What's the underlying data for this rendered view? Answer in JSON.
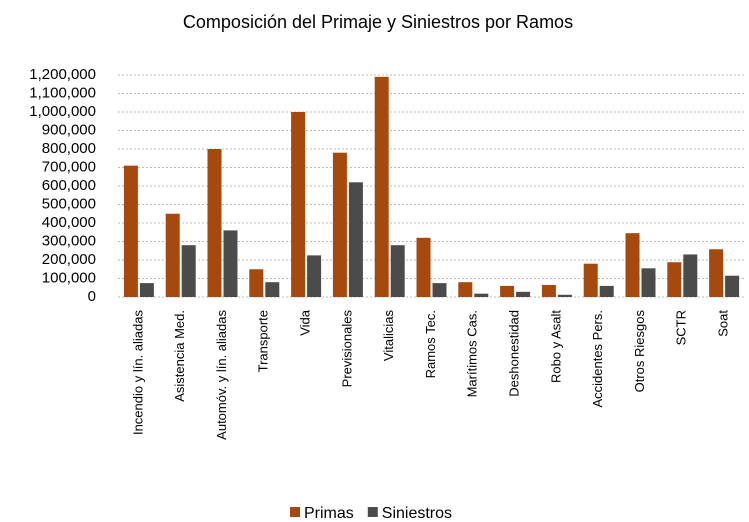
{
  "chart_data": {
    "type": "bar",
    "title": "Composición del Primaje y Siniestros por Ramos",
    "categories": [
      "Incendio y lín. aliadas",
      "Asistencia Med.",
      "Automóv. y lín. aliadas",
      "Transporte",
      "Vida",
      "Previsionales",
      "Vitalicias",
      "Ramos Tec.",
      "Marítimos Cas.",
      "Deshonestidad",
      "Robo y Asalt",
      "Accidentes Pers.",
      "Otros Riesgos",
      "SCTR",
      "Soat"
    ],
    "series": [
      {
        "name": "Primas",
        "color": "#a5490f",
        "values": [
          710000,
          450000,
          800000,
          150000,
          1000000,
          780000,
          1190000,
          320000,
          80000,
          60000,
          65000,
          180000,
          345000,
          188000,
          258000
        ]
      },
      {
        "name": "Siniestros",
        "color": "#4b4b4b",
        "values": [
          75000,
          280000,
          360000,
          80000,
          225000,
          620000,
          280000,
          75000,
          18000,
          28000,
          12000,
          60000,
          155000,
          230000,
          115000
        ]
      }
    ],
    "ylim": [
      0,
      1200000
    ],
    "yticks": [
      0,
      {
        "value": 100000,
        "label": "100,000"
      },
      {
        "value": 200000,
        "label": "200,000"
      },
      {
        "value": 300000,
        "label": "300,000"
      },
      {
        "value": 400000,
        "label": "400,000"
      },
      {
        "value": 500000,
        "label": "500,000"
      },
      {
        "value": 600000,
        "label": "600,000"
      },
      {
        "value": 700000,
        "label": "700,000"
      },
      {
        "value": 800000,
        "label": "800,000"
      },
      {
        "value": 900000,
        "label": "900,000"
      },
      {
        "value": 1000000,
        "label": "1,000,000"
      },
      {
        "value": 1100000,
        "label": "1,100,000"
      },
      {
        "value": 1200000,
        "label": "1,200,000"
      }
    ],
    "grid": true,
    "legend": "bottom"
  }
}
